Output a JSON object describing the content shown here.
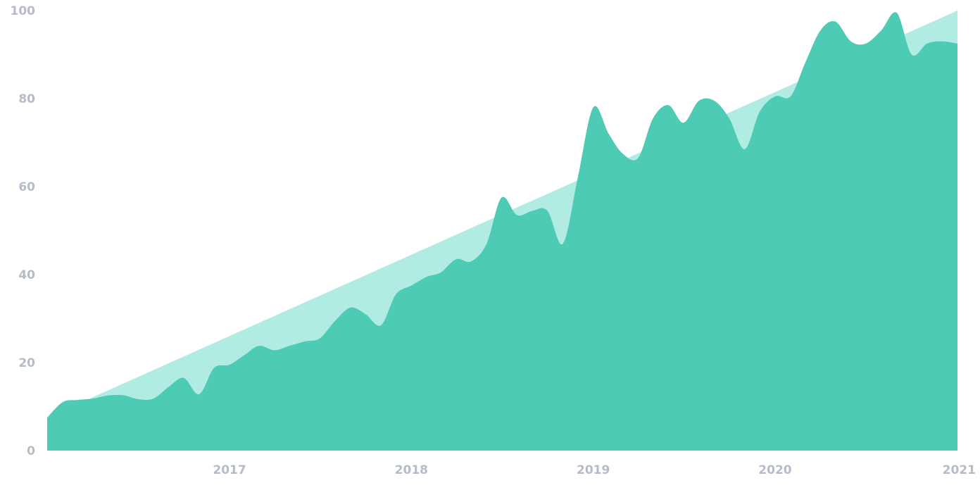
{
  "chart_data": {
    "type": "area",
    "title": "",
    "xlabel": "",
    "ylabel": "",
    "ylim": [
      0,
      100
    ],
    "xlim": [
      "2016-01-01",
      "2021-01-01"
    ],
    "grid": false,
    "legend": "none",
    "y_ticks": [
      "0",
      "20",
      "40",
      "60",
      "80",
      "100"
    ],
    "x_ticks": [
      {
        "date": "2017-01-01",
        "label": "2017"
      },
      {
        "date": "2018-01-01",
        "label": "2018"
      },
      {
        "date": "2019-01-01",
        "label": "2019"
      },
      {
        "date": "2020-01-01",
        "label": "2020"
      },
      {
        "date": "2021-01-01",
        "label": "2021"
      }
    ],
    "colors": {
      "trend_fill": "#b0ece1",
      "actual_fill": "#4ecbb4",
      "tick_text": "#b5bcc8"
    },
    "series": [
      {
        "x": [
          "2016-01-01",
          "2021-01-01"
        ],
        "values": [
          7.5,
          100
        ],
        "color": "#b0ece1"
      },
      {
        "x": [
          "2016-01-01",
          "2016-02-01",
          "2016-03-01",
          "2016-04-01",
          "2016-05-01",
          "2016-06-01",
          "2016-07-01",
          "2016-08-01",
          "2016-09-01",
          "2016-10-01",
          "2016-11-01",
          "2016-12-01",
          "2017-01-01",
          "2017-02-01",
          "2017-03-01",
          "2017-04-01",
          "2017-05-01",
          "2017-06-01",
          "2017-07-01",
          "2017-08-01",
          "2017-09-01",
          "2017-10-01",
          "2017-11-01",
          "2017-12-01",
          "2018-01-01",
          "2018-02-01",
          "2018-03-01",
          "2018-04-01",
          "2018-05-01",
          "2018-06-01",
          "2018-07-01",
          "2018-08-01",
          "2018-09-01",
          "2018-10-01",
          "2018-11-01",
          "2018-12-01",
          "2019-01-01",
          "2019-02-01",
          "2019-03-01",
          "2019-04-01",
          "2019-05-01",
          "2019-06-01",
          "2019-07-01",
          "2019-08-01",
          "2019-09-01",
          "2019-10-01",
          "2019-11-01",
          "2019-12-01",
          "2020-01-01",
          "2020-02-01",
          "2020-03-01",
          "2020-04-01",
          "2020-05-01",
          "2020-06-01",
          "2020-07-01",
          "2020-08-01",
          "2020-09-01",
          "2020-10-01",
          "2020-11-01",
          "2020-12-01",
          "2021-01-01"
        ],
        "values": [
          7.5,
          11.0,
          11.5,
          11.8,
          12.5,
          12.6,
          11.7,
          11.8,
          14.5,
          16.5,
          12.8,
          18.8,
          19.5,
          21.8,
          23.8,
          22.8,
          23.8,
          24.8,
          25.5,
          29.5,
          32.5,
          31.0,
          28.5,
          35.5,
          37.5,
          39.5,
          40.5,
          43.5,
          43.0,
          47.0,
          57.5,
          53.5,
          54.5,
          54.5,
          47.0,
          62.0,
          78.0,
          72.0,
          67.5,
          66.5,
          75.5,
          78.5,
          74.5,
          79.5,
          79.5,
          75.5,
          68.5,
          77.0,
          80.5,
          80.5,
          88.0,
          95.5,
          97.5,
          93.0,
          92.5,
          95.5,
          99.5,
          90.0,
          92.5,
          93.0,
          92.5
        ],
        "color": "#4ecbb4"
      }
    ]
  }
}
